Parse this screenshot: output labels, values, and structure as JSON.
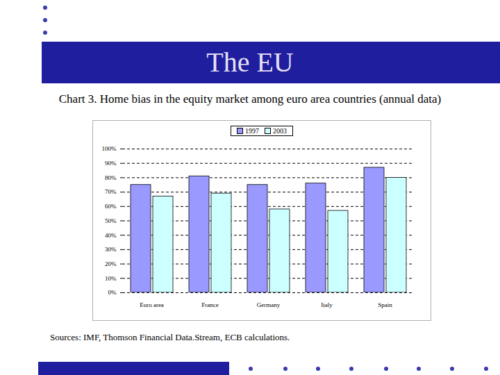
{
  "slide_title": "The EU",
  "chart_data": {
    "type": "bar",
    "title": "Chart 3. Home bias in the equity market among euro area countries (annual data)",
    "source": "Sources: IMF, Thomson Financial Data.Stream, ECB calculations.",
    "categories": [
      "Euro area",
      "France",
      "Germany",
      "Italy",
      "Spain"
    ],
    "series": [
      {
        "name": "1997",
        "color": "#9999ff",
        "values": [
          75,
          81,
          75,
          76,
          87
        ]
      },
      {
        "name": "2003",
        "color": "#ccffff",
        "values": [
          67,
          69,
          58,
          57,
          80
        ]
      }
    ],
    "ylim": [
      0,
      100
    ],
    "yticks": [
      {
        "value": 0,
        "label": "0%"
      },
      {
        "value": 10,
        "label": "10%"
      },
      {
        "value": 20,
        "label": "20%"
      },
      {
        "value": 30,
        "label": "30%"
      },
      {
        "value": 40,
        "label": "40%"
      },
      {
        "value": 50,
        "label": "50%"
      },
      {
        "value": 60,
        "label": "60%"
      },
      {
        "value": 70,
        "label": "70%"
      },
      {
        "value": 80,
        "label": "80%"
      },
      {
        "value": 90,
        "label": "90%"
      },
      {
        "value": 100,
        "label": "100%"
      }
    ],
    "grid": true,
    "legend": "top"
  }
}
